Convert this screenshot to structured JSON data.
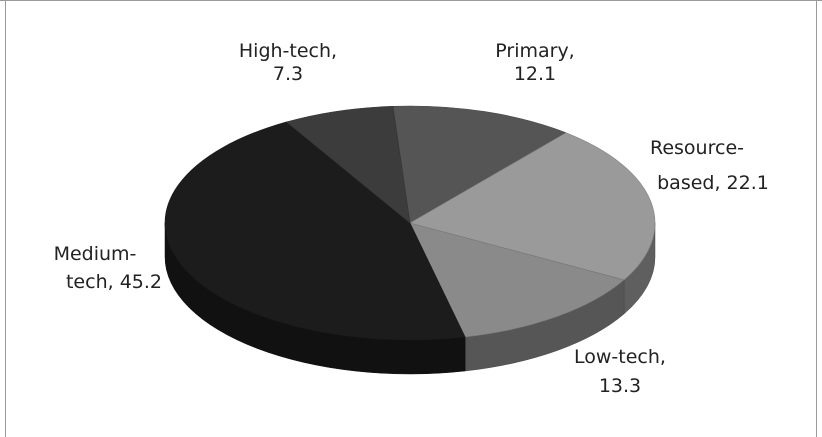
{
  "chart_data": {
    "type": "pie",
    "style": "3d",
    "title": "",
    "legend": "none",
    "slices": [
      {
        "name": "Primary",
        "value": 12.1,
        "label_name": "Primary,",
        "label_value": "12.1",
        "color": "#555555"
      },
      {
        "name": "Resource-based",
        "value": 22.1,
        "label_name": "Resource-",
        "label_value": "based, 22.1",
        "color": "#9a9a9a"
      },
      {
        "name": "Low-tech",
        "value": 13.3,
        "label_name": "Low-tech,",
        "label_value": "13.3",
        "color": "#8a8a8a"
      },
      {
        "name": "Medium-tech",
        "value": 45.2,
        "label_name": "Medium-",
        "label_value": "tech, 45.2",
        "color": "#1c1c1c"
      },
      {
        "name": "High-tech",
        "value": 7.3,
        "label_name": "High-tech,",
        "label_value": "7.3",
        "color": "#3c3c3c"
      }
    ]
  }
}
